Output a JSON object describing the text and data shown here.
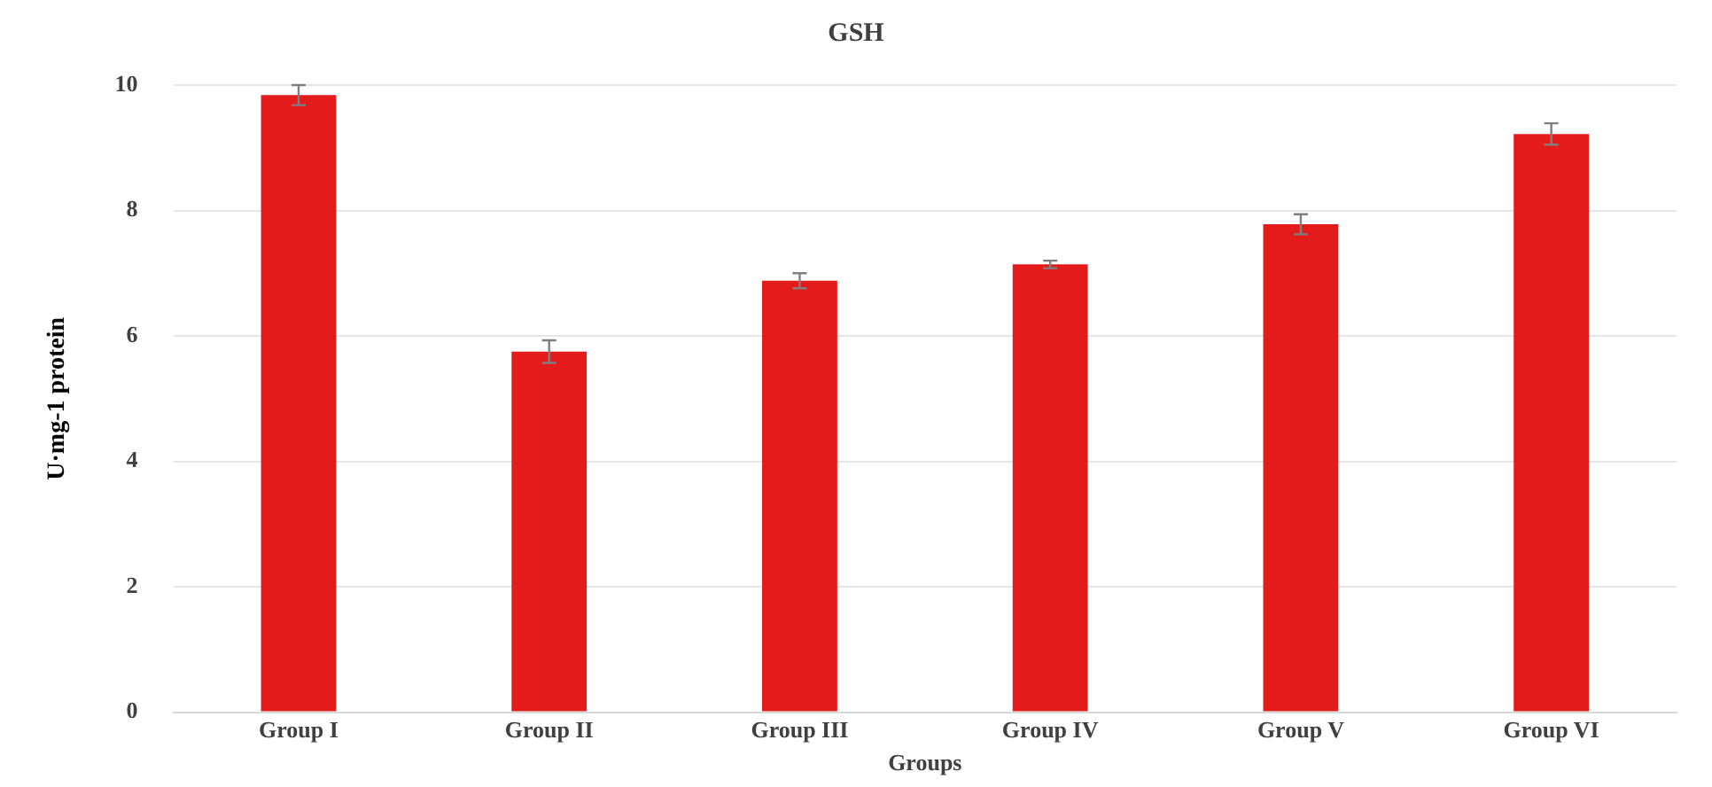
{
  "chart_data": {
    "type": "bar",
    "title": "GSH",
    "xlabel": "Groups",
    "ylabel": "U·mg-1 protein",
    "categories": [
      "Group I",
      "Group II",
      "Group III",
      "Group IV",
      "Group V",
      "Group VI"
    ],
    "values": [
      9.84,
      5.75,
      6.88,
      7.14,
      7.78,
      9.22
    ],
    "errors": [
      0.16,
      0.18,
      0.12,
      0.06,
      0.16,
      0.17
    ],
    "color": "#e31b1b",
    "ylim": [
      0,
      10
    ],
    "yticks": [
      0,
      2,
      4,
      6,
      8,
      10
    ],
    "grid": "y"
  }
}
